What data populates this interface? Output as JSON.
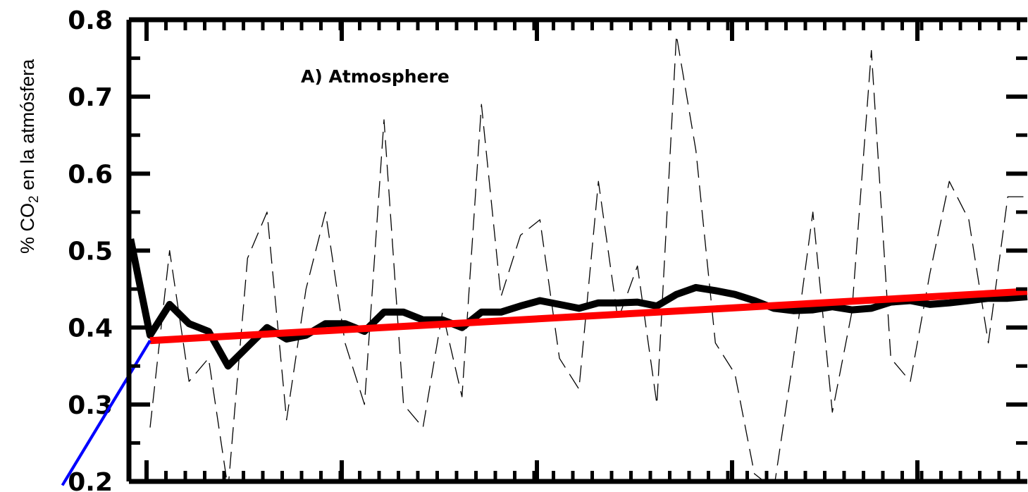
{
  "chart_data": {
    "type": "line",
    "ylabel": {
      "prefix": "% CO",
      "subscript": "2",
      "suffix": " en la atmósfera"
    },
    "annotation": "A) Atmosphere",
    "ylim": [
      0.2,
      0.8
    ],
    "yticks": [
      "0.2",
      "0.3",
      "0.4",
      "0.5",
      "0.6",
      "0.7",
      "0.8"
    ],
    "xlim": [
      0,
      46
    ],
    "grid": false,
    "legend": "none",
    "series": [
      {
        "style": "dashed-thin",
        "color": "#000000",
        "x": [
          1,
          2,
          3,
          4,
          5,
          6,
          7,
          8,
          9,
          10,
          11,
          12,
          13,
          14,
          15,
          16,
          17,
          18,
          19,
          20,
          21,
          22,
          23,
          24,
          25,
          26,
          27,
          28,
          29,
          30,
          31,
          32,
          33,
          34,
          35,
          36,
          37,
          38,
          39,
          40,
          41,
          42,
          43,
          44,
          45,
          46
        ],
        "values": [
          0.27,
          0.5,
          0.33,
          0.36,
          0.19,
          0.49,
          0.55,
          0.28,
          0.45,
          0.55,
          0.38,
          0.3,
          0.67,
          0.3,
          0.27,
          0.42,
          0.31,
          0.69,
          0.44,
          0.52,
          0.54,
          0.36,
          0.32,
          0.59,
          0.41,
          0.48,
          0.3,
          0.78,
          0.63,
          0.38,
          0.34,
          0.21,
          0.19,
          0.36,
          0.55,
          0.29,
          0.42,
          0.76,
          0.36,
          0.33,
          0.47,
          0.59,
          0.54,
          0.38,
          0.57,
          0.57
        ]
      },
      {
        "style": "thick-solid",
        "color": "#000000",
        "x": [
          0,
          1,
          2,
          3,
          4,
          5,
          6,
          7,
          8,
          9,
          10,
          11,
          12,
          13,
          14,
          15,
          16,
          17,
          18,
          19,
          20,
          21,
          22,
          23,
          24,
          25,
          26,
          27,
          28,
          29,
          30,
          31,
          32,
          33,
          34,
          35,
          36,
          37,
          38,
          39,
          40,
          41,
          42,
          43,
          44,
          45,
          46
        ],
        "values": [
          0.515,
          0.39,
          0.43,
          0.405,
          0.395,
          0.35,
          0.375,
          0.4,
          0.385,
          0.39,
          0.405,
          0.405,
          0.395,
          0.42,
          0.42,
          0.41,
          0.41,
          0.4,
          0.42,
          0.42,
          0.428,
          0.435,
          0.43,
          0.425,
          0.432,
          0.432,
          0.433,
          0.428,
          0.443,
          0.452,
          0.448,
          0.443,
          0.435,
          0.425,
          0.422,
          0.423,
          0.427,
          0.423,
          0.425,
          0.433,
          0.435,
          0.43,
          0.432,
          0.435,
          0.438,
          0.438,
          0.44
        ]
      },
      {
        "style": "trend",
        "color": "#ff0000",
        "x": [
          1,
          46
        ],
        "values": [
          0.383,
          0.447
        ]
      },
      {
        "style": "segment",
        "color": "#0000ff",
        "x": [
          -3.5,
          1
        ],
        "values": [
          0.195,
          0.383
        ]
      }
    ]
  }
}
